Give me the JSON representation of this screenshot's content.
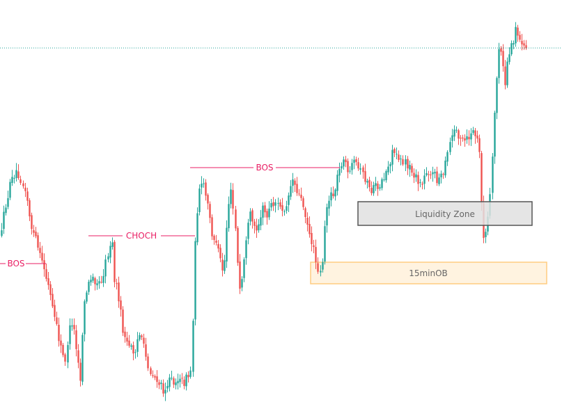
{
  "chart_data": {
    "type": "candlestick",
    "title": "",
    "xlabel": "",
    "ylabel": "",
    "colors": {
      "up": "#26a69a",
      "down": "#ef5350",
      "marker": "#e91e63",
      "current_price_line": "#26a69a"
    },
    "annotations": {
      "bos_left": "BOS",
      "choch": "CHOCH",
      "bos_mid": "BOS",
      "liquidity_zone": "Liquidity Zone",
      "order_block": "15minOB"
    },
    "zone_colors": {
      "liquidity_fill": "#e0e0e0",
      "liquidity_border": "#555555",
      "liquidity_text": "#666666",
      "ob_fill": "#fff3e0",
      "ob_border": "#ffcc80",
      "ob_text": "#666666"
    }
  }
}
